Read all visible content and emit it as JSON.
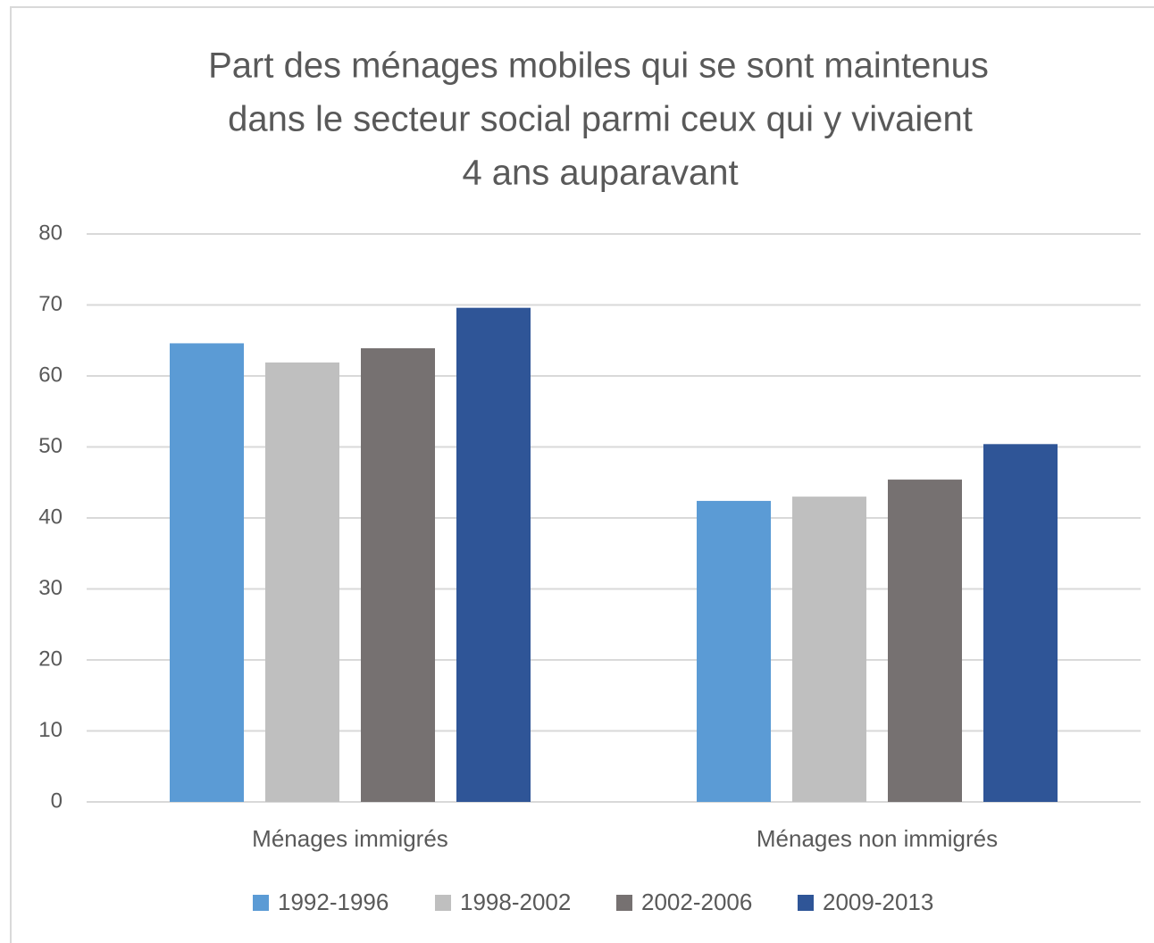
{
  "chart_data": {
    "type": "bar",
    "title": [
      "Part des ménages mobiles qui se sont maintenus",
      "dans le secteur social parmi ceux qui y vivaient",
      "4 ans auparavant"
    ],
    "categories": [
      "Ménages immigrés",
      "Ménages non immigrés"
    ],
    "series": [
      {
        "name": "1992-1996",
        "color": "#5b9bd5",
        "values": [
          64.6,
          42.4
        ]
      },
      {
        "name": "1998-2002",
        "color": "#bfbfbf",
        "values": [
          61.9,
          43.0
        ]
      },
      {
        "name": "2002-2006",
        "color": "#767171",
        "values": [
          63.9,
          45.4
        ]
      },
      {
        "name": "2009-2013",
        "color": "#2f5597",
        "values": [
          69.6,
          50.4
        ]
      }
    ],
    "ylim": [
      0,
      80
    ],
    "yticks": [
      0,
      10,
      20,
      30,
      40,
      50,
      60,
      70,
      80
    ],
    "grid": true,
    "legend": "bottom"
  }
}
